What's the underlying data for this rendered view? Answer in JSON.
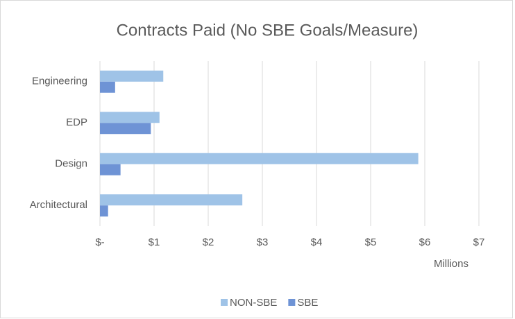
{
  "chart_data": {
    "type": "hbar",
    "title": "Contracts Paid (No SBE Goals/Measure)",
    "categories": [
      "Engineering",
      "EDP",
      "Design",
      "Architectural"
    ],
    "series": [
      {
        "name": "NON-SBE",
        "color": "#9fc3e7",
        "values": [
          1.17,
          1.1,
          5.88,
          2.63
        ]
      },
      {
        "name": "SBE",
        "color": "#6e93d5",
        "values": [
          0.28,
          0.94,
          0.38,
          0.15
        ]
      }
    ],
    "xlabel": "Millions",
    "xlim": [
      0,
      7
    ],
    "xticks": [
      {
        "value": 0,
        "label": "$-"
      },
      {
        "value": 1,
        "label": "$1"
      },
      {
        "value": 2,
        "label": "$2"
      },
      {
        "value": 3,
        "label": "$3"
      },
      {
        "value": 4,
        "label": "$4"
      },
      {
        "value": 5,
        "label": "$5"
      },
      {
        "value": 6,
        "label": "$6"
      },
      {
        "value": 7,
        "label": "$7"
      }
    ],
    "grid": true,
    "legend": "bottom"
  }
}
